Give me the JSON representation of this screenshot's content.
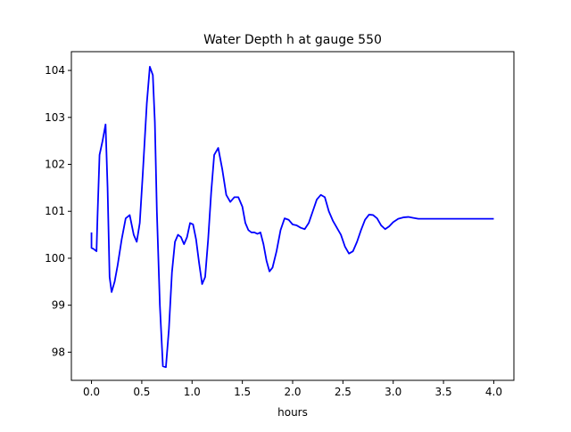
{
  "chart_data": {
    "type": "line",
    "title": "Water Depth h at gauge 550",
    "xlabel": "hours",
    "ylabel": "",
    "xlim": [
      -0.2,
      4.2
    ],
    "ylim": [
      97.4,
      104.4
    ],
    "xticks": [
      0.0,
      0.5,
      1.0,
      1.5,
      2.0,
      2.5,
      3.0,
      3.5,
      4.0
    ],
    "xtick_labels": [
      "0.0",
      "0.5",
      "1.0",
      "1.5",
      "2.0",
      "2.5",
      "3.0",
      "3.5",
      "4.0"
    ],
    "yticks": [
      98,
      99,
      100,
      101,
      102,
      103,
      104
    ],
    "ytick_labels": [
      "98",
      "99",
      "100",
      "101",
      "102",
      "103",
      "104"
    ],
    "grid": false,
    "series": [
      {
        "color": "#0000ff",
        "x": [
          0.0,
          0.0,
          0.02,
          0.05,
          0.06,
          0.08,
          0.11,
          0.14,
          0.16,
          0.18,
          0.2,
          0.23,
          0.26,
          0.3,
          0.34,
          0.38,
          0.42,
          0.45,
          0.48,
          0.51,
          0.55,
          0.58,
          0.61,
          0.63,
          0.65,
          0.68,
          0.71,
          0.74,
          0.77,
          0.8,
          0.83,
          0.86,
          0.89,
          0.92,
          0.95,
          0.98,
          1.01,
          1.04,
          1.07,
          1.1,
          1.13,
          1.16,
          1.19,
          1.22,
          1.26,
          1.3,
          1.34,
          1.38,
          1.42,
          1.46,
          1.5,
          1.53,
          1.56,
          1.59,
          1.62,
          1.65,
          1.68,
          1.71,
          1.74,
          1.77,
          1.8,
          1.84,
          1.88,
          1.92,
          1.96,
          2.0,
          2.04,
          2.08,
          2.12,
          2.16,
          2.2,
          2.24,
          2.28,
          2.32,
          2.36,
          2.4,
          2.44,
          2.48,
          2.52,
          2.56,
          2.6,
          2.64,
          2.68,
          2.72,
          2.76,
          2.8,
          2.84,
          2.88,
          2.92,
          2.96,
          3.0,
          3.05,
          3.1,
          3.15,
          3.2,
          3.25,
          3.3,
          3.35,
          3.4,
          3.45,
          3.5,
          3.55,
          3.6,
          3.65,
          3.7,
          3.75,
          3.8,
          3.85,
          3.9,
          3.95,
          4.0
        ],
        "y": [
          100.55,
          100.22,
          100.2,
          100.15,
          100.9,
          102.2,
          102.5,
          102.85,
          101.5,
          99.6,
          99.28,
          99.5,
          99.85,
          100.4,
          100.85,
          100.92,
          100.5,
          100.35,
          100.75,
          101.8,
          103.3,
          104.08,
          103.9,
          102.9,
          101.0,
          99.0,
          97.7,
          97.68,
          98.5,
          99.7,
          100.35,
          100.5,
          100.45,
          100.3,
          100.45,
          100.75,
          100.72,
          100.4,
          99.9,
          99.45,
          99.6,
          100.4,
          101.4,
          102.2,
          102.35,
          101.9,
          101.35,
          101.2,
          101.3,
          101.3,
          101.1,
          100.75,
          100.6,
          100.55,
          100.55,
          100.52,
          100.55,
          100.3,
          99.95,
          99.72,
          99.8,
          100.15,
          100.6,
          100.85,
          100.82,
          100.72,
          100.7,
          100.65,
          100.62,
          100.75,
          101.0,
          101.25,
          101.35,
          101.3,
          101.0,
          100.8,
          100.65,
          100.5,
          100.25,
          100.1,
          100.15,
          100.35,
          100.6,
          100.82,
          100.93,
          100.92,
          100.85,
          100.7,
          100.62,
          100.68,
          100.77,
          100.84,
          100.87,
          100.88,
          100.86,
          100.84,
          100.84,
          100.84,
          100.84,
          100.84,
          100.84,
          100.84,
          100.84,
          100.84,
          100.84,
          100.84,
          100.84,
          100.84,
          100.84,
          100.84,
          100.84
        ]
      }
    ]
  }
}
